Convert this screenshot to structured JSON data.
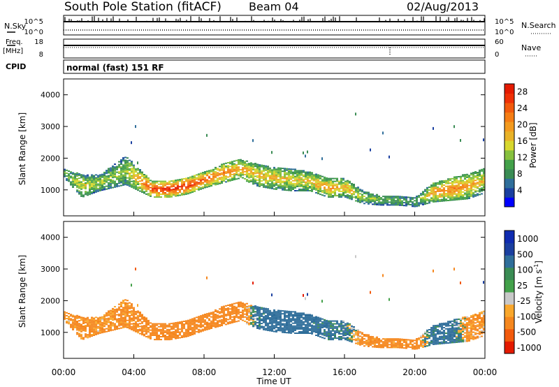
{
  "header": {
    "station": "South Pole Station (fitACF)",
    "beam": "Beam 04",
    "date": "02/Aug/2013"
  },
  "strips": {
    "nsky_label": "N.Sky",
    "nsearch_label": "N.Search",
    "noise_ticks_left": [
      "10^5",
      "10^0"
    ],
    "noise_ticks_right": [
      "10^5",
      "10^0"
    ],
    "freq_label_1": "Freq.",
    "freq_label_2": "[MHz]",
    "freq_ticks": [
      "18",
      "8"
    ],
    "nave_label": "Nave",
    "nave_ticks": [
      "60",
      "0"
    ],
    "cpid_label": "CPID",
    "cpid_value": "normal (fast) 151 RF"
  },
  "colors": {
    "power": [
      "#0000ff",
      "#1a3fa0",
      "#2f6e9a",
      "#3a8c54",
      "#43a14a",
      "#86c03e",
      "#d7d72e",
      "#e8b227",
      "#f39a1e",
      "#f57d14",
      "#f25a0c",
      "#ef3006",
      "#e41a00"
    ],
    "velocity": [
      "#e41a00",
      "#f25a0c",
      "#f5871e",
      "#f9a72c",
      "#c8c8c8",
      "#43a14a",
      "#3a8c54",
      "#2f6e9a",
      "#1a3fa0",
      "#0f2bb0"
    ]
  },
  "chart_data": [
    {
      "type": "heatmap",
      "panel": "power",
      "ylabel": "Slant Range [km]",
      "xlabel": "",
      "ylim": [
        180,
        4500
      ],
      "yticks": [
        "4000",
        "3000",
        "2000",
        "1000"
      ],
      "colorbar_label": "Power [dB]",
      "colorbar_ticks": [
        "28",
        "24",
        "20",
        "16",
        "12",
        "8",
        "4"
      ],
      "colorbar_range": [
        0,
        30
      ],
      "echo_bands": [
        {
          "hour": 0.0,
          "center_km": 1500,
          "width_km": 300,
          "power_db": 10
        },
        {
          "hour": 1.0,
          "center_km": 1100,
          "width_km": 700,
          "power_db": 14
        },
        {
          "hour": 2.0,
          "center_km": 1200,
          "width_km": 500,
          "power_db": 12
        },
        {
          "hour": 3.5,
          "center_km": 1600,
          "width_km": 900,
          "power_db": 12
        },
        {
          "hour": 5.0,
          "center_km": 1000,
          "width_km": 500,
          "power_db": 24
        },
        {
          "hour": 6.0,
          "center_km": 1000,
          "width_km": 500,
          "power_db": 26
        },
        {
          "hour": 7.0,
          "center_km": 1100,
          "width_km": 500,
          "power_db": 26
        },
        {
          "hour": 8.0,
          "center_km": 1300,
          "width_km": 500,
          "power_db": 22
        },
        {
          "hour": 9.0,
          "center_km": 1500,
          "width_km": 600,
          "power_db": 20
        },
        {
          "hour": 10.0,
          "center_km": 1650,
          "width_km": 600,
          "power_db": 18
        },
        {
          "hour": 11.0,
          "center_km": 1450,
          "width_km": 700,
          "power_db": 16
        },
        {
          "hour": 12.0,
          "center_km": 1350,
          "width_km": 700,
          "power_db": 16
        },
        {
          "hour": 13.0,
          "center_km": 1300,
          "width_km": 700,
          "power_db": 14
        },
        {
          "hour": 14.0,
          "center_km": 1250,
          "width_km": 600,
          "power_db": 16
        },
        {
          "hour": 15.0,
          "center_km": 1050,
          "width_km": 600,
          "power_db": 18
        },
        {
          "hour": 16.0,
          "center_km": 1050,
          "width_km": 600,
          "power_db": 16
        },
        {
          "hour": 17.0,
          "center_km": 750,
          "width_km": 400,
          "power_db": 12
        },
        {
          "hour": 18.0,
          "center_km": 650,
          "width_km": 300,
          "power_db": 10
        },
        {
          "hour": 19.0,
          "center_km": 650,
          "width_km": 300,
          "power_db": 10
        },
        {
          "hour": 20.0,
          "center_km": 600,
          "width_km": 300,
          "power_db": 8
        },
        {
          "hour": 21.0,
          "center_km": 900,
          "width_km": 600,
          "power_db": 18
        },
        {
          "hour": 22.0,
          "center_km": 1000,
          "width_km": 700,
          "power_db": 20
        },
        {
          "hour": 23.0,
          "center_km": 1100,
          "width_km": 800,
          "power_db": 18
        },
        {
          "hour": 24.0,
          "center_km": 1300,
          "width_km": 800,
          "power_db": 14
        }
      ]
    },
    {
      "type": "heatmap",
      "panel": "velocity",
      "ylabel": "Slant Range [km]",
      "xlabel": "Time UT",
      "ylim": [
        180,
        4500
      ],
      "yticks": [
        "4000",
        "3000",
        "2000",
        "1000"
      ],
      "xticks": [
        "00:00",
        "04:00",
        "08:00",
        "12:00",
        "16:00",
        "20:00",
        "00:00"
      ],
      "xlim_hours": [
        0,
        24
      ],
      "colorbar_label": "Velocity [m s",
      "colorbar_label_sup": "-1",
      "colorbar_label_end": "]",
      "colorbar_ticks": [
        "1000",
        "500",
        "100",
        "25",
        "-25",
        "-100",
        "-500",
        "-1000"
      ],
      "echo_bands": [
        {
          "hour": 0.0,
          "center_km": 1500,
          "width_km": 300,
          "velocity": -150
        },
        {
          "hour": 1.0,
          "center_km": 1100,
          "width_km": 700,
          "velocity": -200
        },
        {
          "hour": 2.0,
          "center_km": 1200,
          "width_km": 500,
          "velocity": -150
        },
        {
          "hour": 3.5,
          "center_km": 1600,
          "width_km": 900,
          "velocity": -200
        },
        {
          "hour": 5.0,
          "center_km": 1000,
          "width_km": 500,
          "velocity": -250
        },
        {
          "hour": 6.0,
          "center_km": 1000,
          "width_km": 500,
          "velocity": -250
        },
        {
          "hour": 7.0,
          "center_km": 1100,
          "width_km": 500,
          "velocity": -250
        },
        {
          "hour": 8.0,
          "center_km": 1300,
          "width_km": 500,
          "velocity": -250
        },
        {
          "hour": 9.0,
          "center_km": 1500,
          "width_km": 600,
          "velocity": -300
        },
        {
          "hour": 10.0,
          "center_km": 1650,
          "width_km": 600,
          "velocity": -350
        },
        {
          "hour": 11.0,
          "center_km": 1450,
          "width_km": 700,
          "velocity": 200
        },
        {
          "hour": 12.0,
          "center_km": 1350,
          "width_km": 700,
          "velocity": 300
        },
        {
          "hour": 13.0,
          "center_km": 1300,
          "width_km": 700,
          "velocity": 300
        },
        {
          "hour": 14.0,
          "center_km": 1250,
          "width_km": 600,
          "velocity": 250
        },
        {
          "hour": 15.0,
          "center_km": 1050,
          "width_km": 600,
          "velocity": 200
        },
        {
          "hour": 16.0,
          "center_km": 1050,
          "width_km": 600,
          "velocity": 150
        },
        {
          "hour": 17.0,
          "center_km": 750,
          "width_km": 400,
          "velocity": -200
        },
        {
          "hour": 18.0,
          "center_km": 650,
          "width_km": 300,
          "velocity": -250
        },
        {
          "hour": 19.0,
          "center_km": 650,
          "width_km": 300,
          "velocity": -200
        },
        {
          "hour": 20.0,
          "center_km": 600,
          "width_km": 300,
          "velocity": -250
        },
        {
          "hour": 21.0,
          "center_km": 900,
          "width_km": 600,
          "velocity": 200
        },
        {
          "hour": 22.0,
          "center_km": 1000,
          "width_km": 700,
          "velocity": 250
        },
        {
          "hour": 23.0,
          "center_km": 1100,
          "width_km": 800,
          "velocity": -150
        },
        {
          "hour": 24.0,
          "center_km": 1300,
          "width_km": 800,
          "velocity": -150
        }
      ]
    }
  ]
}
